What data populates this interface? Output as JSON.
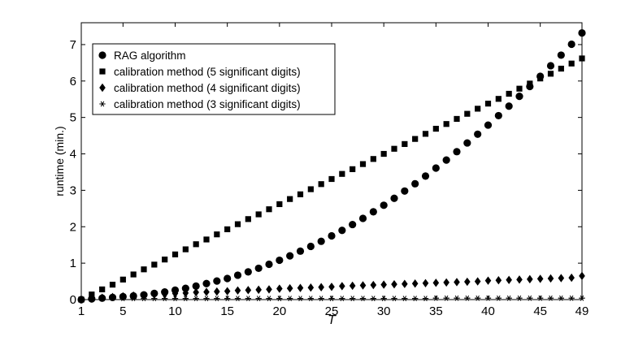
{
  "chart_data": {
    "type": "scatter",
    "xlabel": "T",
    "ylabel": "runtime (min.)",
    "xlim": [
      1,
      49
    ],
    "ylim": [
      0,
      7.6
    ],
    "xticks": [
      1,
      5,
      10,
      15,
      20,
      25,
      30,
      35,
      40,
      45,
      49
    ],
    "yticks": [
      0,
      1,
      2,
      3,
      4,
      5,
      6,
      7
    ],
    "grid": false,
    "legend_position": "top-left",
    "x": [
      1,
      2,
      3,
      4,
      5,
      6,
      7,
      8,
      9,
      10,
      11,
      12,
      13,
      14,
      15,
      16,
      17,
      18,
      19,
      20,
      21,
      22,
      23,
      24,
      25,
      26,
      27,
      28,
      29,
      30,
      31,
      32,
      33,
      34,
      35,
      36,
      37,
      38,
      39,
      40,
      41,
      42,
      43,
      44,
      45,
      46,
      47,
      48,
      49
    ],
    "series": [
      {
        "name": "RAG algorithm",
        "marker": "circle",
        "values": [
          0.0,
          0.02,
          0.04,
          0.06,
          0.08,
          0.1,
          0.13,
          0.17,
          0.21,
          0.26,
          0.31,
          0.37,
          0.44,
          0.51,
          0.58,
          0.67,
          0.76,
          0.86,
          0.97,
          1.08,
          1.2,
          1.33,
          1.46,
          1.6,
          1.75,
          1.9,
          2.06,
          2.23,
          2.41,
          2.59,
          2.78,
          2.98,
          3.18,
          3.39,
          3.61,
          3.83,
          4.06,
          4.3,
          4.54,
          4.79,
          5.05,
          5.31,
          5.58,
          5.85,
          6.13,
          6.42,
          6.71,
          7.01,
          7.32
        ]
      },
      {
        "name": "calibration method (5 significant digits)",
        "marker": "square",
        "values": [
          0.0,
          0.14,
          0.28,
          0.41,
          0.55,
          0.69,
          0.83,
          0.96,
          1.1,
          1.24,
          1.38,
          1.52,
          1.65,
          1.79,
          1.93,
          2.07,
          2.21,
          2.34,
          2.48,
          2.62,
          2.76,
          2.89,
          3.03,
          3.17,
          3.31,
          3.45,
          3.58,
          3.72,
          3.86,
          4.0,
          4.14,
          4.27,
          4.41,
          4.55,
          4.69,
          4.82,
          4.96,
          5.1,
          5.24,
          5.38,
          5.51,
          5.65,
          5.79,
          5.93,
          6.07,
          6.2,
          6.34,
          6.48,
          6.62
        ]
      },
      {
        "name": "calibration method (4 significant digits)",
        "marker": "diamond",
        "values": [
          0.0,
          0.03,
          0.05,
          0.07,
          0.09,
          0.11,
          0.12,
          0.14,
          0.15,
          0.17,
          0.18,
          0.2,
          0.21,
          0.22,
          0.23,
          0.25,
          0.26,
          0.27,
          0.28,
          0.3,
          0.31,
          0.32,
          0.33,
          0.34,
          0.35,
          0.37,
          0.38,
          0.39,
          0.4,
          0.41,
          0.42,
          0.43,
          0.44,
          0.45,
          0.46,
          0.47,
          0.48,
          0.49,
          0.5,
          0.52,
          0.53,
          0.54,
          0.55,
          0.56,
          0.57,
          0.58,
          0.59,
          0.6,
          0.65
        ]
      },
      {
        "name": "calibration method (3 significant digits)",
        "marker": "asterisk",
        "values": [
          0.0,
          0.02,
          0.03,
          0.03,
          0.03,
          0.03,
          0.03,
          0.03,
          0.03,
          0.03,
          0.03,
          0.03,
          0.03,
          0.03,
          0.03,
          0.03,
          0.03,
          0.03,
          0.03,
          0.03,
          0.03,
          0.03,
          0.03,
          0.03,
          0.03,
          0.03,
          0.03,
          0.03,
          0.03,
          0.03,
          0.03,
          0.03,
          0.03,
          0.03,
          0.04,
          0.04,
          0.04,
          0.04,
          0.04,
          0.04,
          0.04,
          0.04,
          0.04,
          0.04,
          0.04,
          0.04,
          0.04,
          0.04,
          0.04
        ]
      }
    ]
  }
}
